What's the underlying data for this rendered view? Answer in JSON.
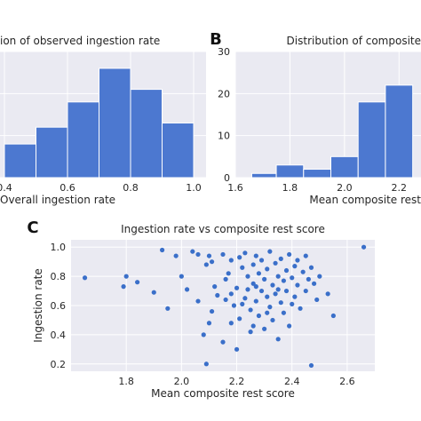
{
  "chart_data": [
    {
      "panel_label": "",
      "type": "bar",
      "title": "ion of observed ingestion rate",
      "xlabel": "Overall ingestion rate",
      "ylabel": "",
      "xlim": [
        0.4,
        1.0
      ],
      "ylim": [
        0,
        30
      ],
      "xticks": [
        "0.4",
        "0.6",
        "0.8",
        "1.0"
      ],
      "yticks": [],
      "grid": true,
      "bins": [
        {
          "start": 0.4,
          "end": 0.5,
          "count": 8
        },
        {
          "start": 0.5,
          "end": 0.6,
          "count": 12
        },
        {
          "start": 0.6,
          "end": 0.7,
          "count": 18
        },
        {
          "start": 0.7,
          "end": 0.8,
          "count": 26
        },
        {
          "start": 0.8,
          "end": 0.9,
          "count": 21
        },
        {
          "start": 0.9,
          "end": 1.0,
          "count": 13
        }
      ]
    },
    {
      "panel_label": "B",
      "type": "bar",
      "title": "Distribution of composite",
      "xlabel": "Mean composite rest",
      "ylabel": "",
      "xlim": [
        1.6,
        2.3
      ],
      "ylim": [
        0,
        30
      ],
      "xticks": [
        "1.6",
        "1.8",
        "2.0",
        "2.2"
      ],
      "yticks": [
        "0",
        "10",
        "20",
        "30"
      ],
      "grid": true,
      "bins": [
        {
          "start": 1.66,
          "end": 1.75,
          "count": 1
        },
        {
          "start": 1.75,
          "end": 1.85,
          "count": 3
        },
        {
          "start": 1.85,
          "end": 1.95,
          "count": 2
        },
        {
          "start": 1.95,
          "end": 2.05,
          "count": 5
        },
        {
          "start": 2.05,
          "end": 2.15,
          "count": 18
        },
        {
          "start": 2.15,
          "end": 2.25,
          "count": 22
        }
      ]
    },
    {
      "panel_label": "C",
      "type": "scatter",
      "title": "Ingestion rate vs composite rest score",
      "xlabel": "Mean composite rest score",
      "ylabel": "Ingestion rate",
      "xlim": [
        1.6,
        2.7
      ],
      "ylim": [
        0.15,
        1.05
      ],
      "xticks": [
        "1.8",
        "2.0",
        "2.2",
        "2.4",
        "2.6"
      ],
      "yticks": [
        "0.2",
        "0.4",
        "0.6",
        "0.8",
        "1.0"
      ],
      "grid": true,
      "points": [
        [
          1.65,
          0.79
        ],
        [
          1.8,
          0.8
        ],
        [
          1.79,
          0.73
        ],
        [
          1.84,
          0.76
        ],
        [
          1.9,
          0.69
        ],
        [
          1.93,
          0.98
        ],
        [
          1.95,
          0.58
        ],
        [
          1.98,
          0.94
        ],
        [
          2.0,
          0.8
        ],
        [
          2.02,
          0.71
        ],
        [
          2.04,
          0.97
        ],
        [
          2.06,
          0.95
        ],
        [
          2.06,
          0.63
        ],
        [
          2.09,
          0.88
        ],
        [
          2.1,
          0.94
        ],
        [
          2.11,
          0.9
        ],
        [
          2.08,
          0.4
        ],
        [
          2.09,
          0.2
        ],
        [
          2.1,
          0.48
        ],
        [
          2.11,
          0.56
        ],
        [
          2.12,
          0.73
        ],
        [
          2.13,
          0.67
        ],
        [
          2.15,
          0.95
        ],
        [
          2.16,
          0.78
        ],
        [
          2.15,
          0.35
        ],
        [
          2.16,
          0.64
        ],
        [
          2.17,
          0.82
        ],
        [
          2.18,
          0.48
        ],
        [
          2.18,
          0.91
        ],
        [
          2.19,
          0.6
        ],
        [
          2.2,
          0.72
        ],
        [
          2.2,
          0.3
        ],
        [
          2.21,
          0.93
        ],
        [
          2.21,
          0.51
        ],
        [
          2.22,
          0.86
        ],
        [
          2.23,
          0.65
        ],
        [
          2.23,
          0.96
        ],
        [
          2.24,
          0.8
        ],
        [
          2.24,
          0.71
        ],
        [
          2.25,
          0.42
        ],
        [
          2.25,
          0.57
        ],
        [
          2.26,
          0.75
        ],
        [
          2.26,
          0.88
        ],
        [
          2.27,
          0.94
        ],
        [
          2.27,
          0.63
        ],
        [
          2.28,
          0.82
        ],
        [
          2.28,
          0.53
        ],
        [
          2.29,
          0.7
        ],
        [
          2.29,
          0.91
        ],
        [
          2.3,
          0.78
        ],
        [
          2.3,
          0.44
        ],
        [
          2.31,
          0.66
        ],
        [
          2.31,
          0.85
        ],
        [
          2.32,
          0.97
        ],
        [
          2.32,
          0.59
        ],
        [
          2.33,
          0.74
        ],
        [
          2.33,
          0.5
        ],
        [
          2.34,
          0.89
        ],
        [
          2.34,
          0.68
        ],
        [
          2.35,
          0.8
        ],
        [
          2.35,
          0.37
        ],
        [
          2.36,
          0.62
        ],
        [
          2.36,
          0.92
        ],
        [
          2.37,
          0.77
        ],
        [
          2.37,
          0.55
        ],
        [
          2.38,
          0.84
        ],
        [
          2.38,
          0.7
        ],
        [
          2.39,
          0.46
        ],
        [
          2.39,
          0.95
        ],
        [
          2.4,
          0.61
        ],
        [
          2.4,
          0.79
        ],
        [
          2.41,
          0.87
        ],
        [
          2.41,
          0.66
        ],
        [
          2.42,
          0.74
        ],
        [
          2.42,
          0.91
        ],
        [
          2.43,
          0.58
        ],
        [
          2.44,
          0.83
        ],
        [
          2.45,
          0.7
        ],
        [
          2.45,
          0.94
        ],
        [
          2.46,
          0.78
        ],
        [
          2.47,
          0.19
        ],
        [
          2.47,
          0.86
        ],
        [
          2.48,
          0.75
        ],
        [
          2.49,
          0.64
        ],
        [
          2.5,
          0.8
        ],
        [
          2.53,
          0.68
        ],
        [
          2.55,
          0.53
        ],
        [
          2.22,
          0.61
        ],
        [
          2.27,
          0.73
        ],
        [
          2.31,
          0.55
        ],
        [
          2.18,
          0.68
        ],
        [
          2.35,
          0.71
        ],
        [
          2.26,
          0.46
        ],
        [
          2.66,
          1.0
        ]
      ]
    }
  ]
}
